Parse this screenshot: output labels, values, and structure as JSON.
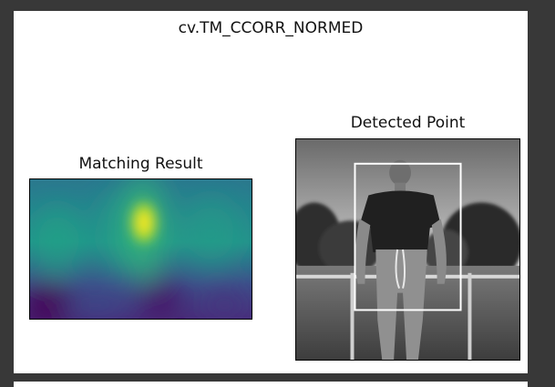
{
  "figure": {
    "suptitle": "cv.TM_CCORR_NORMED"
  },
  "left_panel": {
    "title": "Matching Result",
    "colormap": "viridis",
    "peak_color": "#fde725",
    "low_color": "#440154"
  },
  "right_panel": {
    "title": "Detected Point",
    "box_color": "#ffffff"
  }
}
